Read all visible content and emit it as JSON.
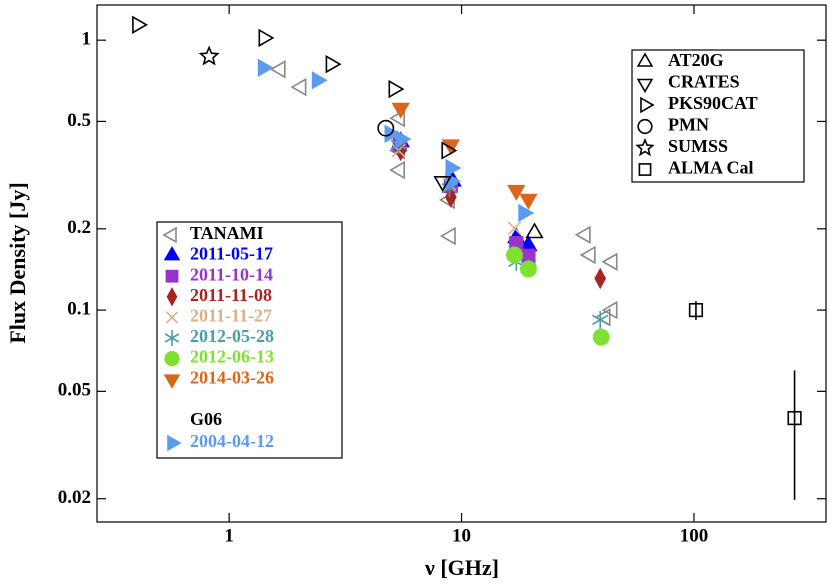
{
  "chart_data": {
    "type": "scatter",
    "x_label": "ν [GHz]",
    "y_label": "Flux Density [Jy]",
    "xlog": true,
    "ylog": true,
    "xlim": [
      0.27,
      370
    ],
    "ylim": [
      0.0164,
      1.35
    ],
    "xticks": [
      1,
      10,
      100
    ],
    "yticks": [
      0.02,
      0.05,
      0.1,
      0.2,
      0.5,
      1
    ],
    "legend_group_label": "G06",
    "series": [
      {
        "name": "TANAMI",
        "color": "#888888",
        "marker": "tri-left",
        "filled": false,
        "x": [
          1.66,
          2.04,
          5.42,
          5.42,
          5.42,
          8.88,
          8.96,
          34.1,
          35.8,
          44.5,
          44.5,
          41.5
        ],
        "values": [
          0.78,
          0.67,
          0.514,
          0.39,
          0.33,
          0.256,
          0.188,
          0.19,
          0.16,
          0.151,
          0.1,
          0.094
        ]
      },
      {
        "name": "2011-05-17",
        "color": "#0000ff",
        "marker": "tri-up",
        "filled": true,
        "x": [
          5.47,
          9.15,
          17.2,
          19.4
        ],
        "values": [
          0.42,
          0.3,
          0.185,
          0.173
        ]
      },
      {
        "name": "2011-10-14",
        "color": "#9933cc",
        "marker": "square",
        "filled": true,
        "x": [
          5.42,
          8.99,
          17.2,
          19.4
        ],
        "values": [
          0.41,
          0.288,
          0.177,
          0.159
        ]
      },
      {
        "name": "2011-11-08",
        "color": "#aa2222",
        "marker": "diamond",
        "filled": true,
        "x": [
          5.47,
          8.99,
          39.5
        ],
        "values": [
          0.39,
          0.262,
          0.131
        ]
      },
      {
        "name": "2011-11-27",
        "color": "#dcb08a",
        "marker": "x",
        "filled": false,
        "x": [
          5.36,
          8.88,
          16.9
        ],
        "values": [
          0.39,
          0.293,
          0.201
        ]
      },
      {
        "name": "2012-05-28",
        "color": "#4a9ea8",
        "marker": "asterisk",
        "filled": false,
        "x": [
          5.36,
          8.88,
          17.2,
          19.4,
          39.5
        ],
        "values": [
          0.41,
          0.283,
          0.151,
          0.143,
          0.092
        ]
      },
      {
        "name": "2012-06-13",
        "color": "#7fe030",
        "marker": "circle",
        "filled": true,
        "x": [
          16.9,
          19.4,
          39.9
        ],
        "values": [
          0.16,
          0.142,
          0.0794
        ]
      },
      {
        "name": "2014-03-26",
        "color": "#d9661a",
        "marker": "tri-down",
        "filled": true,
        "x": [
          5.47,
          8.99,
          17.2,
          19.4
        ],
        "values": [
          0.56,
          0.41,
          0.278,
          0.258
        ]
      },
      {
        "name": "2004-04-12",
        "color": "#5b9cf0",
        "marker": "tri-right",
        "filled": true,
        "x": [
          1.4,
          2.39,
          4.91,
          5.47,
          8.96,
          8.99,
          18.5
        ],
        "values": [
          0.79,
          0.71,
          0.45,
          0.43,
          0.3,
          0.336,
          0.229
        ]
      }
    ],
    "catalogs": [
      {
        "name": "AT20G",
        "color": "#000000",
        "marker": "tri-up",
        "filled": false,
        "x": [
          20.6
        ],
        "values": [
          0.193
        ]
      },
      {
        "name": "CRATES",
        "color": "#000000",
        "marker": "tri-down",
        "filled": false,
        "x": [
          8.29
        ],
        "values": [
          0.3
        ]
      },
      {
        "name": "PKS90CAT",
        "color": "#000000",
        "marker": "tri-right",
        "filled": false,
        "x": [
          0.403,
          1.41,
          2.74,
          5.11,
          8.63
        ],
        "values": [
          1.14,
          1.02,
          0.815,
          0.659,
          0.39
        ]
      },
      {
        "name": "PMN",
        "color": "#000000",
        "marker": "circle",
        "filled": false,
        "x": [
          4.72
        ],
        "values": [
          0.472
        ]
      },
      {
        "name": "SUMSS",
        "color": "#000000",
        "marker": "star",
        "filled": false,
        "x": [
          0.82
        ],
        "values": [
          0.87
        ]
      },
      {
        "name": "ALMA Cal",
        "color": "#000000",
        "marker": "square",
        "filled": false,
        "x": [
          102,
          271
        ],
        "values": [
          0.1,
          0.0398
        ],
        "errors": [
          0.008,
          0.02
        ]
      }
    ]
  }
}
